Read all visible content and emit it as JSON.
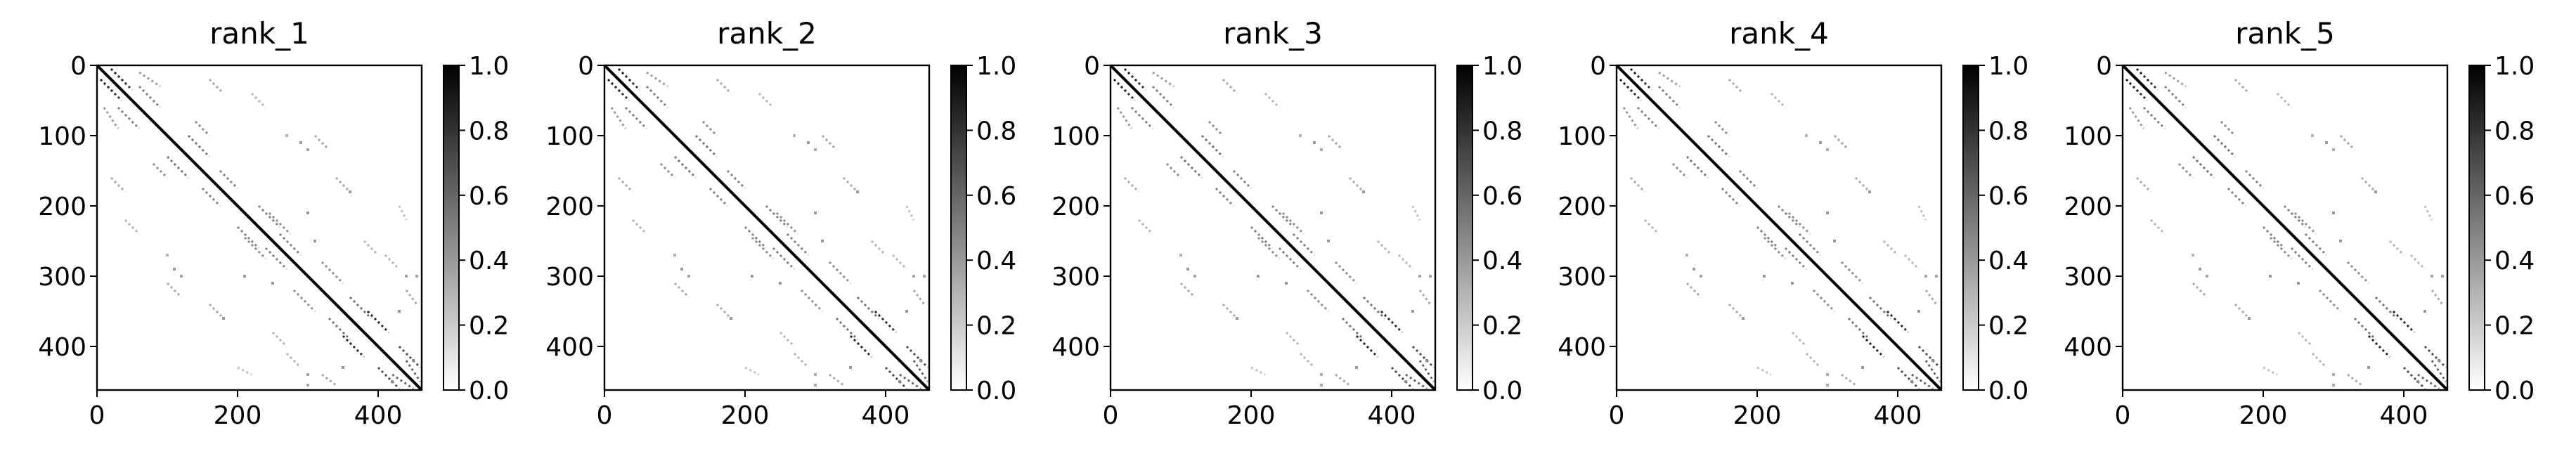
{
  "chart_data": [
    {
      "type": "heatmap",
      "title": "rank_1",
      "colormap": "Greys",
      "xlim": [
        0,
        462
      ],
      "ylim": [
        462,
        0
      ],
      "xticks": [
        0,
        200,
        400
      ],
      "yticks": [
        0,
        100,
        200,
        300,
        400
      ],
      "colorbar": {
        "range": [
          0.0,
          1.0
        ],
        "ticks": [
          "0.0",
          "0.2",
          "0.4",
          "0.6",
          "0.8",
          "1.0"
        ]
      },
      "pattern": "contact map: strong main diagonal with off-diagonal antiparallel and parallel strand contacts; matrix is symmetric"
    },
    {
      "type": "heatmap",
      "title": "rank_2",
      "colormap": "Greys",
      "xlim": [
        0,
        462
      ],
      "ylim": [
        462,
        0
      ],
      "xticks": [
        0,
        200,
        400
      ],
      "yticks": [
        0,
        100,
        200,
        300,
        400
      ],
      "colorbar": {
        "range": [
          0.0,
          1.0
        ],
        "ticks": [
          "0.0",
          "0.2",
          "0.4",
          "0.6",
          "0.8",
          "1.0"
        ]
      },
      "pattern": "contact map: strong main diagonal with off-diagonal antiparallel and parallel strand contacts; matrix is symmetric"
    },
    {
      "type": "heatmap",
      "title": "rank_3",
      "colormap": "Greys",
      "xlim": [
        0,
        462
      ],
      "ylim": [
        462,
        0
      ],
      "xticks": [
        0,
        200,
        400
      ],
      "yticks": [
        0,
        100,
        200,
        300,
        400
      ],
      "colorbar": {
        "range": [
          0.0,
          1.0
        ],
        "ticks": [
          "0.0",
          "0.2",
          "0.4",
          "0.6",
          "0.8",
          "1.0"
        ]
      },
      "pattern": "contact map: strong main diagonal with off-diagonal antiparallel and parallel strand contacts; matrix is symmetric"
    },
    {
      "type": "heatmap",
      "title": "rank_4",
      "colormap": "Greys",
      "xlim": [
        0,
        462
      ],
      "ylim": [
        462,
        0
      ],
      "xticks": [
        0,
        200,
        400
      ],
      "yticks": [
        0,
        100,
        200,
        300,
        400
      ],
      "colorbar": {
        "range": [
          0.0,
          1.0
        ],
        "ticks": [
          "0.0",
          "0.2",
          "0.4",
          "0.6",
          "0.8",
          "1.0"
        ]
      },
      "pattern": "contact map: strong main diagonal with off-diagonal antiparallel and parallel strand contacts; matrix is symmetric"
    },
    {
      "type": "heatmap",
      "title": "rank_5",
      "colormap": "Greys",
      "xlim": [
        0,
        462
      ],
      "ylim": [
        462,
        0
      ],
      "xticks": [
        0,
        200,
        400
      ],
      "yticks": [
        0,
        100,
        200,
        300,
        400
      ],
      "colorbar": {
        "range": [
          0.0,
          1.0
        ],
        "ticks": [
          "0.0",
          "0.2",
          "0.4",
          "0.6",
          "0.8",
          "1.0"
        ]
      },
      "pattern": "contact map: strong main diagonal with off-diagonal antiparallel and parallel strand contacts; matrix is symmetric"
    }
  ],
  "contacts": {
    "diagonal": [
      [
        0,
        462,
        1.0
      ]
    ],
    "segments": [
      [
        5,
        20,
        25,
        40,
        0.9
      ],
      [
        20,
        5,
        40,
        25,
        0.9
      ],
      [
        15,
        30,
        35,
        50,
        0.8
      ],
      [
        30,
        15,
        50,
        35,
        0.8
      ],
      [
        30,
        60,
        60,
        90,
        0.5
      ],
      [
        60,
        30,
        90,
        60,
        0.5
      ],
      [
        60,
        10,
        90,
        30,
        0.4
      ],
      [
        10,
        60,
        30,
        90,
        0.4
      ],
      [
        100,
        130,
        130,
        160,
        0.55
      ],
      [
        130,
        100,
        160,
        130,
        0.55
      ],
      [
        80,
        140,
        100,
        160,
        0.45
      ],
      [
        140,
        80,
        160,
        100,
        0.45
      ],
      [
        150,
        175,
        175,
        200,
        0.5
      ],
      [
        175,
        150,
        200,
        175,
        0.5
      ],
      [
        200,
        230,
        230,
        260,
        0.5
      ],
      [
        230,
        200,
        260,
        230,
        0.5
      ],
      [
        210,
        245,
        240,
        275,
        0.45
      ],
      [
        245,
        210,
        275,
        240,
        0.45
      ],
      [
        240,
        260,
        270,
        290,
        0.5
      ],
      [
        260,
        240,
        290,
        270,
        0.5
      ],
      [
        280,
        320,
        310,
        350,
        0.45
      ],
      [
        320,
        280,
        350,
        310,
        0.45
      ],
      [
        330,
        360,
        360,
        390,
        0.55
      ],
      [
        360,
        330,
        390,
        360,
        0.55
      ],
      [
        350,
        385,
        380,
        415,
        0.85
      ],
      [
        385,
        350,
        415,
        380,
        0.85
      ],
      [
        400,
        430,
        430,
        460,
        0.7
      ],
      [
        430,
        400,
        460,
        430,
        0.7
      ],
      [
        420,
        440,
        450,
        460,
        0.6
      ],
      [
        440,
        420,
        460,
        450,
        0.6
      ],
      [
        20,
        160,
        40,
        180,
        0.35
      ],
      [
        160,
        20,
        180,
        40,
        0.35
      ],
      [
        40,
        220,
        60,
        240,
        0.3
      ],
      [
        220,
        40,
        240,
        60,
        0.3
      ],
      [
        100,
        310,
        120,
        330,
        0.35
      ],
      [
        310,
        100,
        330,
        120,
        0.35
      ],
      [
        160,
        340,
        180,
        360,
        0.35
      ],
      [
        340,
        160,
        360,
        180,
        0.35
      ],
      [
        270,
        410,
        290,
        430,
        0.3
      ],
      [
        410,
        270,
        430,
        290,
        0.3
      ],
      [
        320,
        440,
        340,
        455,
        0.35
      ],
      [
        440,
        320,
        455,
        340,
        0.35
      ],
      [
        430,
        200,
        440,
        220,
        0.25
      ],
      [
        200,
        430,
        220,
        440,
        0.25
      ],
      [
        250,
        380,
        270,
        400,
        0.3
      ],
      [
        380,
        250,
        400,
        270,
        0.3
      ]
    ],
    "dots": [
      [
        110,
        290,
        0.4
      ],
      [
        290,
        110,
        0.4
      ],
      [
        120,
        300,
        0.35
      ],
      [
        300,
        120,
        0.35
      ],
      [
        180,
        360,
        0.4
      ],
      [
        360,
        180,
        0.4
      ],
      [
        210,
        300,
        0.4
      ],
      [
        300,
        210,
        0.4
      ],
      [
        300,
        440,
        0.35
      ],
      [
        440,
        300,
        0.35
      ],
      [
        300,
        455,
        0.35
      ],
      [
        455,
        300,
        0.35
      ],
      [
        350,
        430,
        0.4
      ],
      [
        430,
        350,
        0.4
      ],
      [
        420,
        450,
        0.45
      ],
      [
        450,
        420,
        0.45
      ],
      [
        250,
        310,
        0.4
      ],
      [
        310,
        250,
        0.4
      ],
      [
        100,
        270,
        0.3
      ],
      [
        270,
        100,
        0.3
      ]
    ]
  }
}
